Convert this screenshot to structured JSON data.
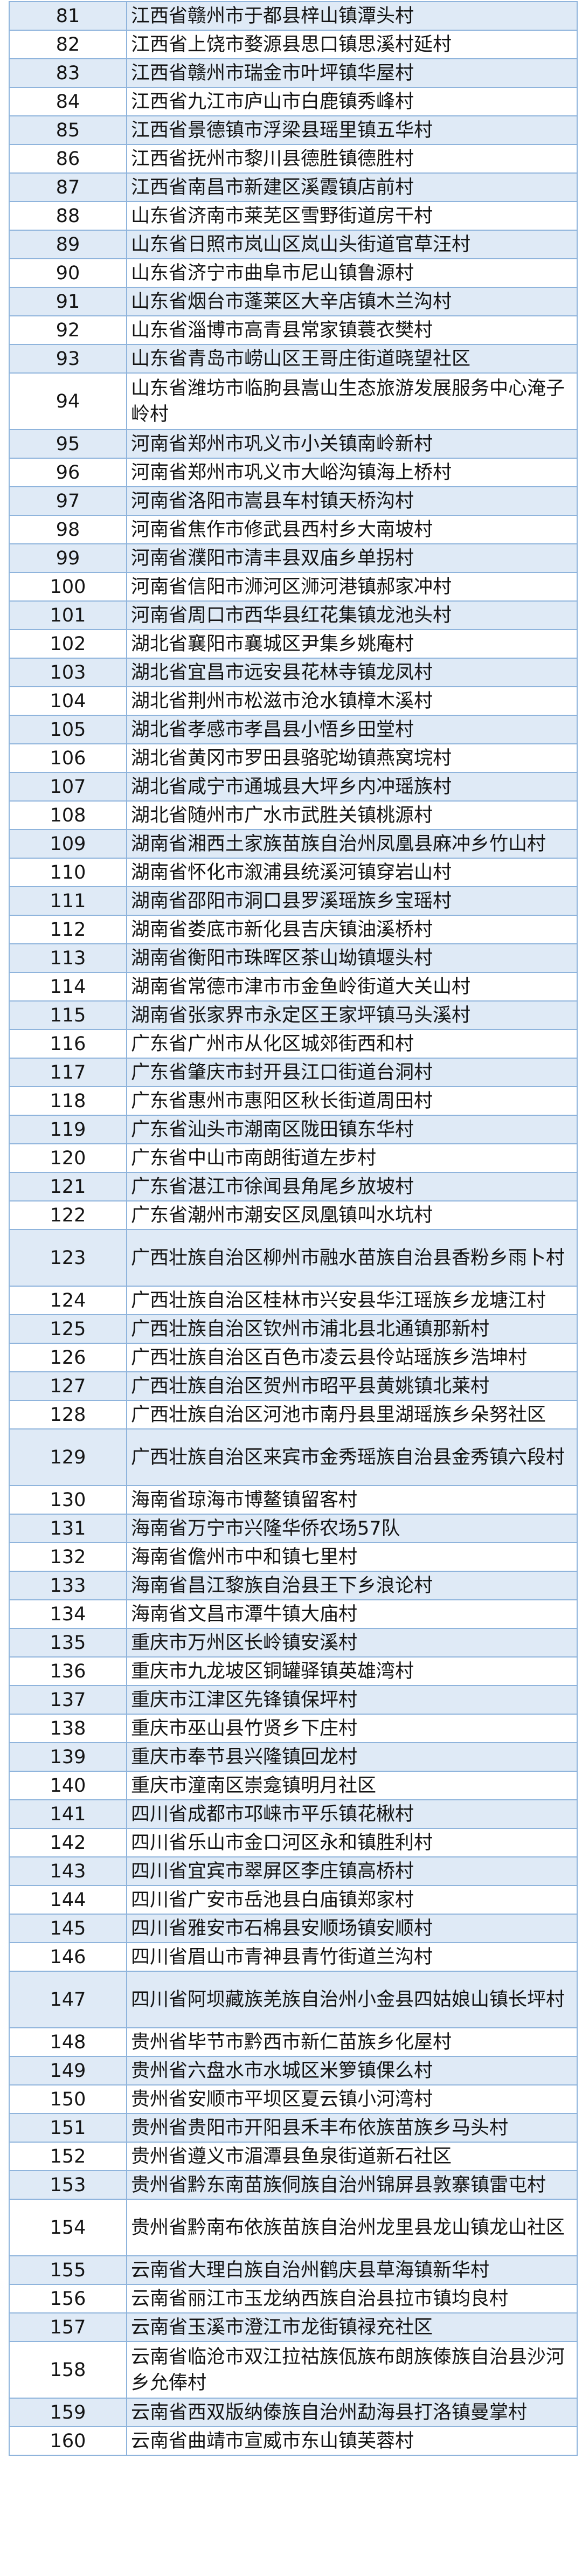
{
  "table": {
    "colors": {
      "row_odd": "#dfeaf6",
      "row_even": "#ffffff",
      "border": "#8fb4dc"
    },
    "rows": [
      {
        "no": "81",
        "name": "江西省赣州市于都县梓山镇潭头村"
      },
      {
        "no": "82",
        "name": "江西省上饶市婺源县思口镇思溪村延村"
      },
      {
        "no": "83",
        "name": "江西省赣州市瑞金市叶坪镇华屋村"
      },
      {
        "no": "84",
        "name": "江西省九江市庐山市白鹿镇秀峰村"
      },
      {
        "no": "85",
        "name": "江西省景德镇市浮梁县瑶里镇五华村"
      },
      {
        "no": "86",
        "name": "江西省抚州市黎川县德胜镇德胜村"
      },
      {
        "no": "87",
        "name": "江西省南昌市新建区溪霞镇店前村"
      },
      {
        "no": "88",
        "name": "山东省济南市莱芜区雪野街道房干村"
      },
      {
        "no": "89",
        "name": "山东省日照市岚山区岚山头街道官草汪村"
      },
      {
        "no": "90",
        "name": "山东省济宁市曲阜市尼山镇鲁源村"
      },
      {
        "no": "91",
        "name": "山东省烟台市蓬莱区大辛店镇木兰沟村"
      },
      {
        "no": "92",
        "name": "山东省淄博市高青县常家镇蓑衣樊村"
      },
      {
        "no": "93",
        "name": "山东省青岛市崂山区王哥庄街道晓望社区"
      },
      {
        "no": "94",
        "name": "山东省潍坊市临朐县嵩山生态旅游发展服务中心淹子岭村"
      },
      {
        "no": "95",
        "name": "河南省郑州市巩义市小关镇南岭新村"
      },
      {
        "no": "96",
        "name": "河南省郑州市巩义市大峪沟镇海上桥村"
      },
      {
        "no": "97",
        "name": "河南省洛阳市嵩县车村镇天桥沟村"
      },
      {
        "no": "98",
        "name": "河南省焦作市修武县西村乡大南坡村"
      },
      {
        "no": "99",
        "name": "河南省濮阳市清丰县双庙乡单拐村"
      },
      {
        "no": "100",
        "name": "河南省信阳市浉河区浉河港镇郝家冲村"
      },
      {
        "no": "101",
        "name": "河南省周口市西华县红花集镇龙池头村"
      },
      {
        "no": "102",
        "name": "湖北省襄阳市襄城区尹集乡姚庵村"
      },
      {
        "no": "103",
        "name": "湖北省宜昌市远安县花林寺镇龙凤村"
      },
      {
        "no": "104",
        "name": "湖北省荆州市松滋市沧水镇樟木溪村"
      },
      {
        "no": "105",
        "name": "湖北省孝感市孝昌县小悟乡田堂村"
      },
      {
        "no": "106",
        "name": "湖北省黄冈市罗田县骆驼坳镇燕窝垸村"
      },
      {
        "no": "107",
        "name": "湖北省咸宁市通城县大坪乡内冲瑶族村"
      },
      {
        "no": "108",
        "name": "湖北省随州市广水市武胜关镇桃源村"
      },
      {
        "no": "109",
        "name": "湖南省湘西土家族苗族自治州凤凰县麻冲乡竹山村"
      },
      {
        "no": "110",
        "name": "湖南省怀化市溆浦县统溪河镇穿岩山村"
      },
      {
        "no": "111",
        "name": "湖南省邵阳市洞口县罗溪瑶族乡宝瑶村"
      },
      {
        "no": "112",
        "name": "湖南省娄底市新化县吉庆镇油溪桥村"
      },
      {
        "no": "113",
        "name": "湖南省衡阳市珠晖区茶山坳镇堰头村"
      },
      {
        "no": "114",
        "name": "湖南省常德市津市市金鱼岭街道大关山村"
      },
      {
        "no": "115",
        "name": "湖南省张家界市永定区王家坪镇马头溪村"
      },
      {
        "no": "116",
        "name": "广东省广州市从化区城郊街西和村"
      },
      {
        "no": "117",
        "name": "广东省肇庆市封开县江口街道台洞村"
      },
      {
        "no": "118",
        "name": "广东省惠州市惠阳区秋长街道周田村"
      },
      {
        "no": "119",
        "name": "广东省汕头市潮南区陇田镇东华村"
      },
      {
        "no": "120",
        "name": "广东省中山市南朗街道左步村"
      },
      {
        "no": "121",
        "name": "广东省湛江市徐闻县角尾乡放坡村"
      },
      {
        "no": "122",
        "name": "广东省潮州市潮安区凤凰镇叫水坑村"
      },
      {
        "no": "123",
        "name": "广西壮族自治区柳州市融水苗族自治县香粉乡雨卜村"
      },
      {
        "no": "124",
        "name": "广西壮族自治区桂林市兴安县华江瑶族乡龙塘江村"
      },
      {
        "no": "125",
        "name": "广西壮族自治区钦州市浦北县北通镇那新村"
      },
      {
        "no": "126",
        "name": "广西壮族自治区百色市凌云县伶站瑶族乡浩坤村"
      },
      {
        "no": "127",
        "name": "广西壮族自治区贺州市昭平县黄姚镇北莱村"
      },
      {
        "no": "128",
        "name": "广西壮族自治区河池市南丹县里湖瑶族乡朵努社区"
      },
      {
        "no": "129",
        "name": "广西壮族自治区来宾市金秀瑶族自治县金秀镇六段村"
      },
      {
        "no": "130",
        "name": "海南省琼海市博鳌镇留客村"
      },
      {
        "no": "131",
        "name": "海南省万宁市兴隆华侨农场57队"
      },
      {
        "no": "132",
        "name": "海南省儋州市中和镇七里村"
      },
      {
        "no": "133",
        "name": "海南省昌江黎族自治县王下乡浪论村"
      },
      {
        "no": "134",
        "name": "海南省文昌市潭牛镇大庙村"
      },
      {
        "no": "135",
        "name": "重庆市万州区长岭镇安溪村"
      },
      {
        "no": "136",
        "name": "重庆市九龙坡区铜罐驿镇英雄湾村"
      },
      {
        "no": "137",
        "name": "重庆市江津区先锋镇保坪村"
      },
      {
        "no": "138",
        "name": "重庆市巫山县竹贤乡下庄村"
      },
      {
        "no": "139",
        "name": "重庆市奉节县兴隆镇回龙村"
      },
      {
        "no": "140",
        "name": "重庆市潼南区崇龛镇明月社区"
      },
      {
        "no": "141",
        "name": "四川省成都市邛崃市平乐镇花楸村"
      },
      {
        "no": "142",
        "name": "四川省乐山市金口河区永和镇胜利村"
      },
      {
        "no": "143",
        "name": "四川省宜宾市翠屏区李庄镇高桥村"
      },
      {
        "no": "144",
        "name": "四川省广安市岳池县白庙镇郑家村"
      },
      {
        "no": "145",
        "name": "四川省雅安市石棉县安顺场镇安顺村"
      },
      {
        "no": "146",
        "name": "四川省眉山市青神县青竹街道兰沟村"
      },
      {
        "no": "147",
        "name": "四川省阿坝藏族羌族自治州小金县四姑娘山镇长坪村"
      },
      {
        "no": "148",
        "name": "贵州省毕节市黔西市新仁苗族乡化屋村"
      },
      {
        "no": "149",
        "name": "贵州省六盘水市水城区米箩镇倮么村"
      },
      {
        "no": "150",
        "name": "贵州省安顺市平坝区夏云镇小河湾村"
      },
      {
        "no": "151",
        "name": "贵州省贵阳市开阳县禾丰布依族苗族乡马头村"
      },
      {
        "no": "152",
        "name": "贵州省遵义市湄潭县鱼泉街道新石社区"
      },
      {
        "no": "153",
        "name": "贵州省黔东南苗族侗族自治州锦屏县敦寨镇雷屯村"
      },
      {
        "no": "154",
        "name": "贵州省黔南布依族苗族自治州龙里县龙山镇龙山社区"
      },
      {
        "no": "155",
        "name": "云南省大理白族自治州鹤庆县草海镇新华村"
      },
      {
        "no": "156",
        "name": "云南省丽江市玉龙纳西族自治县拉市镇均良村"
      },
      {
        "no": "157",
        "name": "云南省玉溪市澄江市龙街镇禄充社区"
      },
      {
        "no": "158",
        "name": "云南省临沧市双江拉祜族佤族布朗族傣族自治县沙河乡允俸村"
      },
      {
        "no": "159",
        "name": "云南省西双版纳傣族自治州勐海县打洛镇曼掌村"
      },
      {
        "no": "160",
        "name": "云南省曲靖市宣威市东山镇芙蓉村"
      }
    ]
  }
}
